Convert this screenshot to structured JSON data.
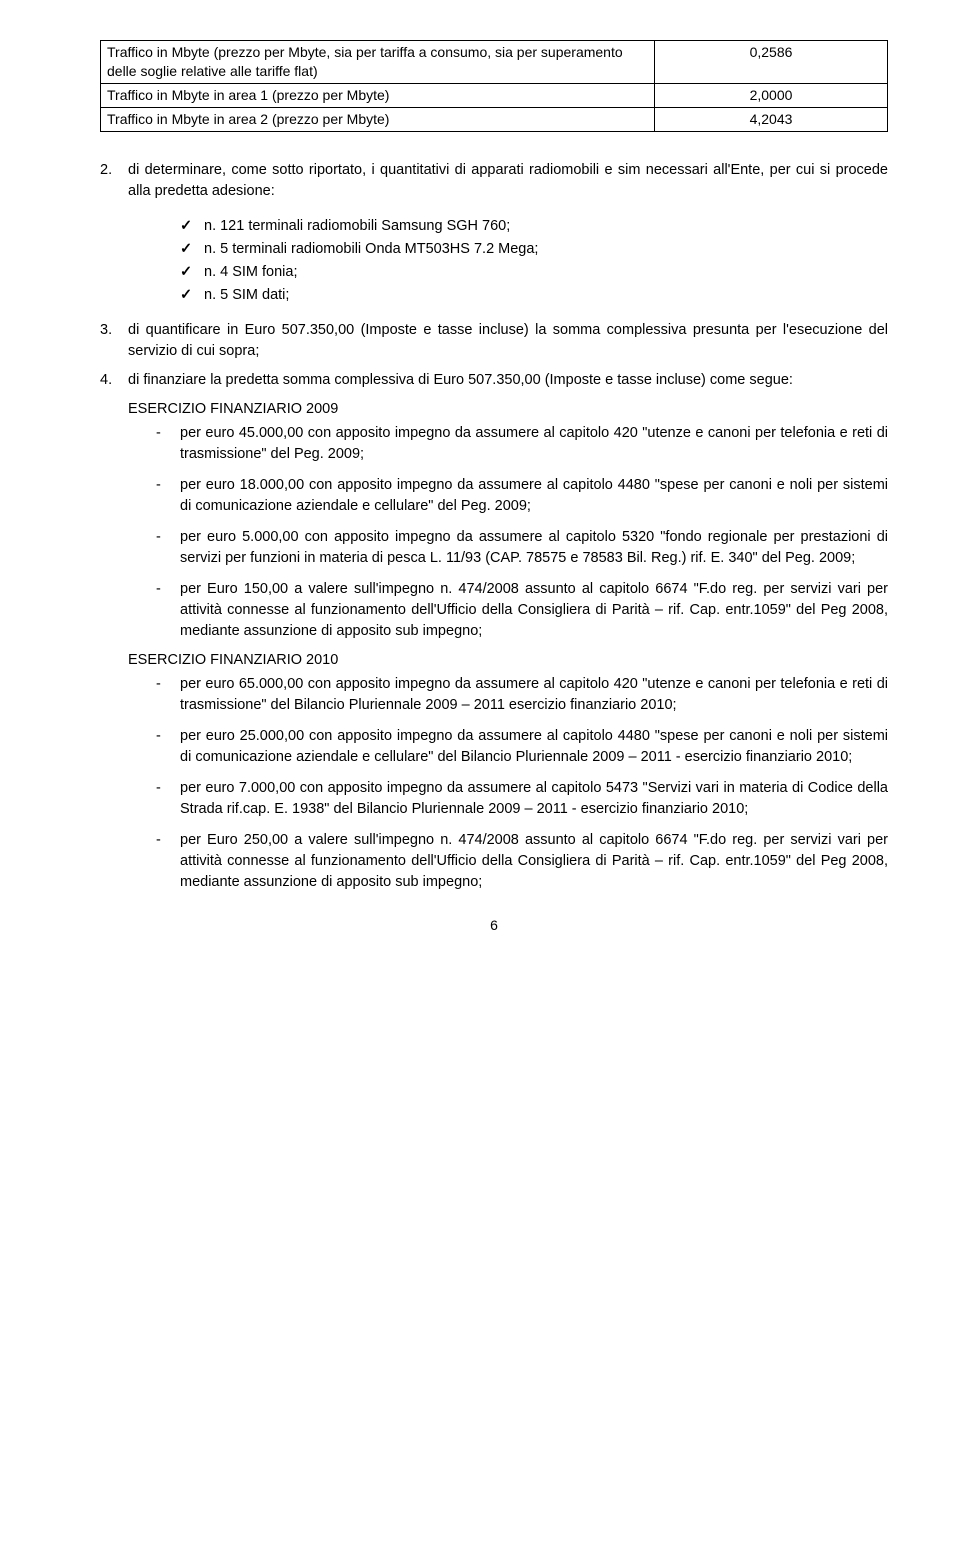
{
  "tariff_table": {
    "rows": [
      {
        "label": "Traffico in Mbyte (prezzo per Mbyte, sia per tariffa a consumo, sia per superamento delle soglie relative alle tariffe flat)",
        "value": "0,2586"
      },
      {
        "label": "Traffico in Mbyte in area 1 (prezzo per Mbyte)",
        "value": "2,0000"
      },
      {
        "label": "Traffico in Mbyte in area 2 (prezzo per Mbyte)",
        "value": "4,2043"
      }
    ]
  },
  "item2": {
    "num": "2.",
    "text_before": "di determinare, come sotto riportato, i quantitativi di apparati radiomobili e sim necessari all'Ente, per cui si procede alla predetta adesione:",
    "checklist": [
      "n.   121 terminali radiomobili Samsung SGH 760;",
      "n.   5 terminali radiomobili Onda MT503HS 7.2 Mega;",
      "n.   4 SIM fonia;",
      "n.   5 SIM dati;"
    ]
  },
  "item3": {
    "num": "3.",
    "text": "di quantificare in Euro 507.350,00 (Imposte e tasse incluse) la somma complessiva presunta per l'esecuzione del servizio di cui sopra;"
  },
  "item4": {
    "num": "4.",
    "text": "di finanziare la predetta somma complessiva di Euro 507.350,00 (Imposte e tasse incluse) come segue:"
  },
  "ex2009": {
    "heading": "ESERCIZIO FINANZIARIO 2009",
    "items": [
      "per euro 45.000,00 con apposito impegno da assumere al capitolo 420 \"utenze e canoni per telefonia e reti di trasmissione\" del Peg. 2009;",
      "per euro 18.000,00 con apposito impegno da assumere al capitolo 4480 \"spese per canoni e noli per sistemi di comunicazione aziendale e cellulare\" del Peg. 2009;",
      "per euro 5.000,00 con apposito impegno da assumere al capitolo 5320 \"fondo regionale per prestazioni di servizi per funzioni in materia di pesca L. 11/93 (CAP. 78575 e 78583 Bil. Reg.) rif. E. 340\" del Peg. 2009;",
      "per Euro 150,00 a valere sull'impegno n. 474/2008 assunto al capitolo 6674 \"F.do reg. per servizi vari per attività connesse al funzionamento dell'Ufficio della Consigliera di Parità – rif. Cap. entr.1059\" del Peg 2008, mediante assunzione di apposito sub impegno;"
    ]
  },
  "ex2010": {
    "heading": "ESERCIZIO FINANZIARIO 2010",
    "items": [
      "per euro 65.000,00 con apposito impegno da assumere al capitolo 420 \"utenze e canoni per telefonia e reti di trasmissione\" del Bilancio Pluriennale 2009 – 2011 esercizio finanziario 2010;",
      "per euro 25.000,00 con apposito impegno da assumere al capitolo 4480 \"spese per canoni e noli per sistemi di comunicazione aziendale e cellulare\" del Bilancio Pluriennale 2009 – 2011 - esercizio finanziario 2010;",
      "per euro 7.000,00 con apposito impegno da assumere al capitolo 5473 \"Servizi vari in materia di Codice della Strada rif.cap. E. 1938\" del Bilancio Pluriennale 2009 – 2011 - esercizio finanziario 2010;",
      "per Euro 250,00 a valere sull'impegno n. 474/2008 assunto al capitolo 6674 \"F.do reg. per servizi vari per attività connesse al funzionamento dell'Ufficio della Consigliera di Parità – rif. Cap. entr.1059\" del Peg 2008, mediante assunzione di apposito sub impegno;"
    ]
  },
  "page_number": "6"
}
